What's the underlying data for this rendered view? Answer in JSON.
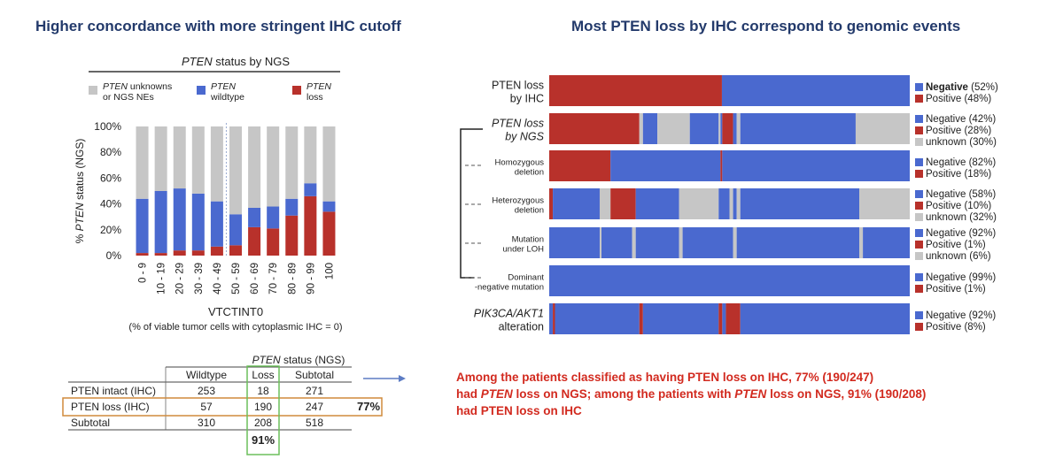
{
  "headings": {
    "left": "Higher concordance with more stringent IHC cutoff",
    "right": "Most PTEN loss by IHC correspond to genomic events"
  },
  "colors": {
    "unknown": "#c6c6c6",
    "wildtype": "#4a69cf",
    "loss": "#b8312b",
    "negative": "#4a69cf",
    "positive": "#b8312b",
    "heading": "#233a6b",
    "callout": "#d22a1f"
  },
  "chart_data": [
    {
      "type": "bar",
      "stacked": true,
      "title_italic": "PTEN",
      "title_rest": " status by NGS",
      "legend": [
        {
          "italic": "PTEN",
          "text": " unknowns",
          "line2": "or NGS NEs",
          "color_key": "unknown"
        },
        {
          "italic": "PTEN",
          "text": "",
          "line2": "wildtype",
          "color_key": "wildtype"
        },
        {
          "italic": "PTEN",
          "text": "",
          "line2": "loss",
          "color_key": "loss"
        }
      ],
      "categories": [
        "0 - 9",
        "10 - 19",
        "20 - 29",
        "30 - 39",
        "40 - 49",
        "50 - 59",
        "60 - 69",
        "70 - 79",
        "80 - 89",
        "90 - 99",
        "100"
      ],
      "series": [
        {
          "name": "loss",
          "values": [
            2,
            2,
            4,
            4,
            7,
            8,
            22,
            21,
            31,
            46,
            34
          ]
        },
        {
          "name": "wildtype",
          "values": [
            42,
            48,
            48,
            44,
            35,
            24,
            15,
            17,
            13,
            10,
            8
          ]
        },
        {
          "name": "unknown",
          "values": [
            56,
            50,
            48,
            52,
            58,
            68,
            63,
            62,
            56,
            44,
            58
          ]
        }
      ],
      "yticks": [
        "0%",
        "20%",
        "40%",
        "60%",
        "80%",
        "100%"
      ],
      "ylim": [
        0,
        100
      ],
      "ylabel_pre": "% ",
      "ylabel_italic": "PTEN",
      "ylabel_post": " status (NGS)",
      "xlabel": "VTCTINT0",
      "xnote": "(% of viable tumor cells with cytoplasmic IHC = 0)"
    },
    {
      "type": "heatmap",
      "rows": [
        {
          "label": [
            "PTEN loss",
            "by IHC"
          ],
          "italic": false,
          "segments": [
            [
              "p",
              0,
              47.9
            ],
            [
              "n",
              47.9,
              100
            ]
          ],
          "legend": [
            {
              "text": "Negative",
              "pct": "(52%)",
              "key": "n",
              "bold": true
            },
            {
              "text": "Positive",
              "pct": "(48%)",
              "key": "p"
            }
          ]
        },
        {
          "label": [
            "PTEN loss",
            "by NGS"
          ],
          "italic": true,
          "segments": [
            [
              "p",
              0,
              25
            ],
            [
              "u",
              25,
              26
            ],
            [
              "n",
              26,
              30
            ],
            [
              "u",
              30,
              39
            ],
            [
              "n",
              39,
              47
            ],
            [
              "u",
              47,
              47.5
            ],
            [
              "n",
              47.5,
              48
            ],
            [
              "p",
              48,
              51
            ],
            [
              "n",
              51,
              52
            ],
            [
              "u",
              52,
              53
            ],
            [
              "n",
              53,
              85
            ],
            [
              "u",
              85,
              100
            ]
          ],
          "legend": [
            {
              "text": "Negative",
              "pct": "(42%)",
              "key": "n"
            },
            {
              "text": "Positive",
              "pct": "(28%)",
              "key": "p"
            },
            {
              "text": "unknown",
              "pct": "(30%)",
              "key": "u"
            }
          ]
        },
        {
          "label": [
            "Homozygous",
            "deletion"
          ],
          "italic": false,
          "small": true,
          "segments": [
            [
              "p",
              0,
              17
            ],
            [
              "n",
              17,
              47.5
            ],
            [
              "p",
              47.5,
              48
            ],
            [
              "n",
              48,
              100
            ]
          ],
          "legend": [
            {
              "text": "Negative",
              "pct": "(82%)",
              "key": "n"
            },
            {
              "text": "Positive",
              "pct": "(18%)",
              "key": "p"
            }
          ]
        },
        {
          "label": [
            "Heterozygous",
            "deletion"
          ],
          "italic": false,
          "small": true,
          "segments": [
            [
              "p",
              0,
              1
            ],
            [
              "n",
              1,
              14
            ],
            [
              "u",
              14,
              17
            ],
            [
              "p",
              17,
              24
            ],
            [
              "n",
              24,
              36
            ],
            [
              "u",
              36,
              47
            ],
            [
              "n",
              47,
              50
            ],
            [
              "u",
              50,
              51
            ],
            [
              "n",
              51,
              52
            ],
            [
              "u",
              52,
              53
            ],
            [
              "n",
              53,
              86
            ],
            [
              "u",
              86,
              100
            ]
          ],
          "legend": [
            {
              "text": "Negative",
              "pct": "(58%)",
              "key": "n"
            },
            {
              "text": "Positive",
              "pct": "(10%)",
              "key": "p"
            },
            {
              "text": "unknown",
              "pct": "(32%)",
              "key": "u"
            }
          ]
        },
        {
          "label": [
            "Mutation",
            "under LOH"
          ],
          "italic": false,
          "small": true,
          "segments": [
            [
              "n",
              0,
              14
            ],
            [
              "u",
              14,
              14.5
            ],
            [
              "n",
              14.5,
              23
            ],
            [
              "u",
              23,
              24
            ],
            [
              "n",
              24,
              36
            ],
            [
              "u",
              36,
              37
            ],
            [
              "n",
              37,
              51
            ],
            [
              "u",
              51,
              52
            ],
            [
              "n",
              52,
              86
            ],
            [
              "u",
              86,
              87
            ],
            [
              "n",
              87,
              100
            ]
          ],
          "legend": [
            {
              "text": "Negative",
              "pct": "(92%)",
              "key": "n"
            },
            {
              "text": "Positive",
              "pct": "(1%)",
              "key": "p"
            },
            {
              "text": "unknown",
              "pct": "(6%)",
              "key": "u"
            }
          ]
        },
        {
          "label": [
            "Dominant",
            "-negative mutation"
          ],
          "italic": false,
          "small": true,
          "segments": [
            [
              "n",
              0,
              100
            ]
          ],
          "legend": [
            {
              "text": "Negative",
              "pct": "(99%)",
              "key": "n"
            },
            {
              "text": "Positive",
              "pct": "(1%)",
              "key": "p"
            }
          ]
        },
        {
          "label": [
            "PIK3CA/AKT1",
            "alteration"
          ],
          "italic": "first",
          "segments": [
            [
              "n",
              0,
              1
            ],
            [
              "p",
              1,
              1.6
            ],
            [
              "n",
              1.6,
              25
            ],
            [
              "p",
              25,
              26
            ],
            [
              "n",
              26,
              47
            ],
            [
              "p",
              47,
              48
            ],
            [
              "n",
              48,
              49
            ],
            [
              "p",
              49,
              53
            ],
            [
              "n",
              53,
              100
            ]
          ],
          "legend": [
            {
              "text": "Negative",
              "pct": "(92%)",
              "key": "n"
            },
            {
              "text": "Positive",
              "pct": "(8%)",
              "key": "p"
            }
          ]
        }
      ]
    }
  ],
  "table": {
    "title_italic": "PTEN",
    "title_rest": " status (NGS)",
    "columns": [
      "Wildtype",
      "Loss",
      "Subtotal"
    ],
    "rows": [
      {
        "label": "PTEN intact (IHC)",
        "values": [
          "253",
          "18",
          "271"
        ]
      },
      {
        "label": "PTEN loss (IHC)",
        "values": [
          "57",
          "190",
          "247"
        ]
      },
      {
        "label": "Subtotal",
        "values": [
          "310",
          "208",
          "518"
        ]
      }
    ],
    "row_pct": "77%",
    "col_pct": "91%"
  },
  "callout": {
    "line1": "Among the patients classified as having PTEN loss on IHC, 77% (190/247)",
    "line2_a": "had ",
    "line2_b": "PTEN",
    "line2_c": " loss on NGS; among the patients with ",
    "line2_d": "PTEN",
    "line2_e": " loss on NGS, 91% (190/208)",
    "line3": "had PTEN loss on IHC"
  }
}
